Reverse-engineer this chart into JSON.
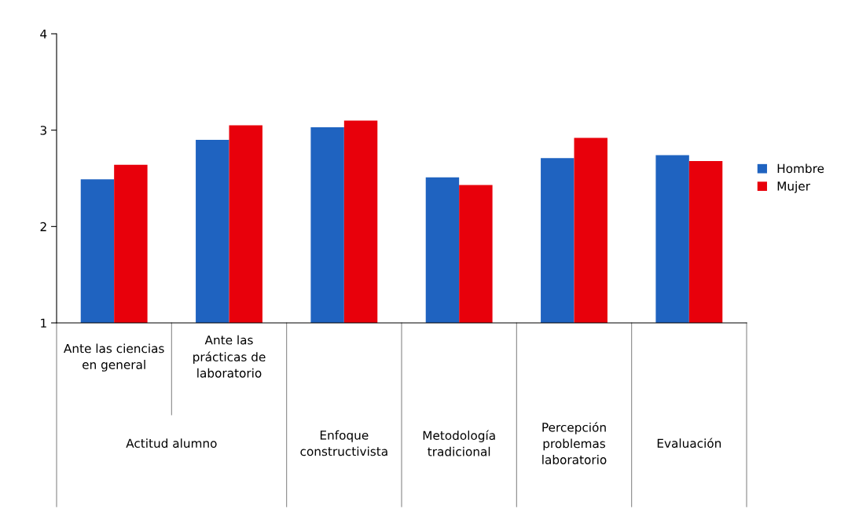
{
  "chart_data": {
    "type": "bar",
    "categories": [
      "Ante las ciencias\nen general",
      "Ante las\nprácticas de\nlaboratorio",
      null,
      null,
      null,
      null
    ],
    "series": [
      {
        "name": "Hombre",
        "color": "#1f63c0",
        "values": [
          2.49,
          2.9,
          3.03,
          2.51,
          2.71,
          2.74
        ]
      },
      {
        "name": "Mujer",
        "color": "#e8000b",
        "values": [
          2.64,
          3.05,
          3.1,
          2.43,
          2.92,
          2.68
        ]
      }
    ],
    "annotations": [
      "Actitud alumno",
      "Enfoque\nconstructivista",
      "Metodología\ntradicional",
      "Percepción\nproblemas\nlaboratorio",
      "Evaluación"
    ],
    "ylim": [
      1,
      4
    ],
    "yticks": [
      1,
      2,
      3,
      4
    ],
    "grid": false,
    "legend": "right"
  }
}
